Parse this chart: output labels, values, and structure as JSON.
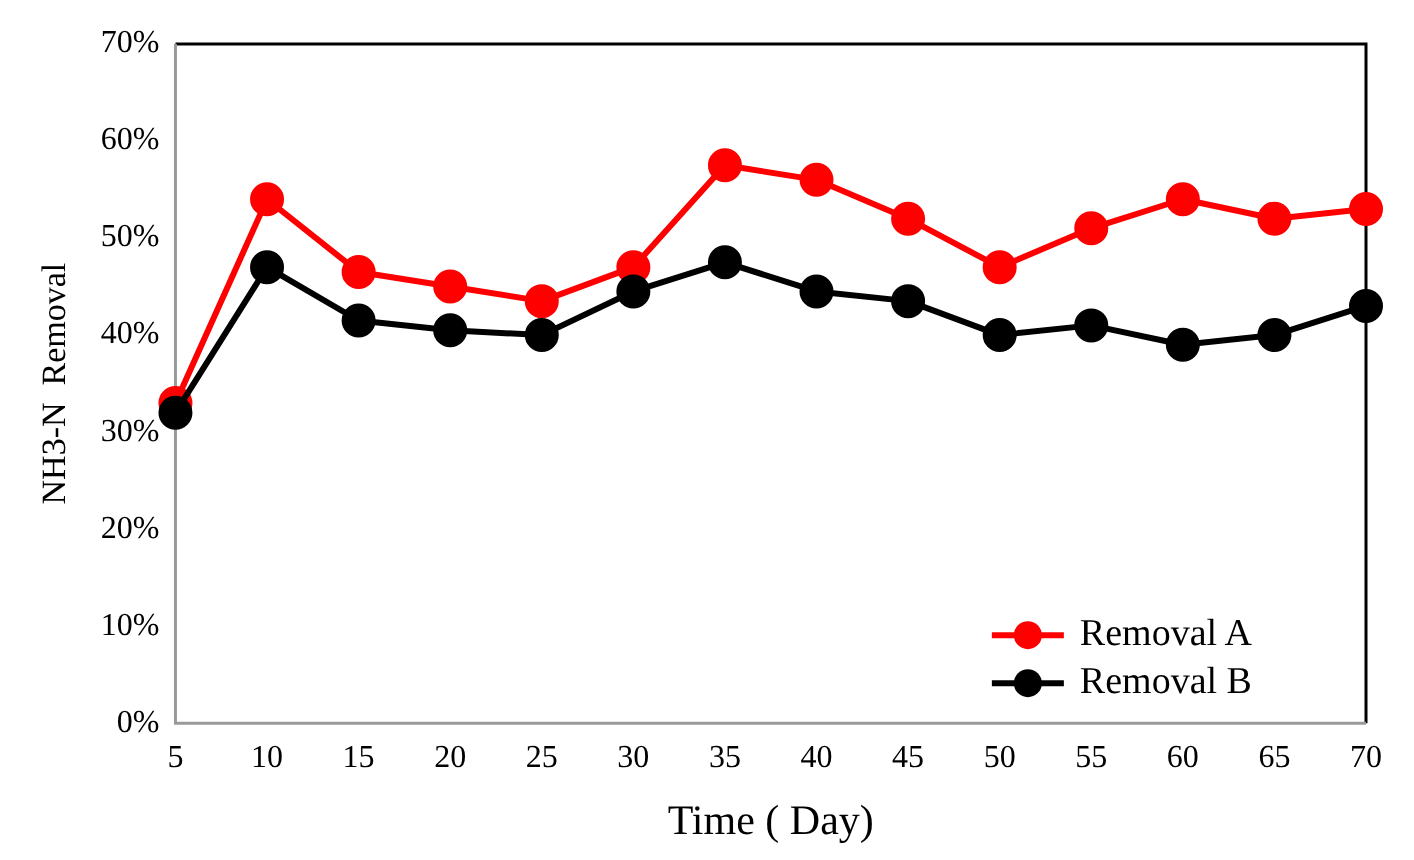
{
  "chart_data": {
    "type": "line",
    "xlabel": "Time ( Day)",
    "ylabel": "NH3-N  Removal",
    "categories": [
      "5",
      "10",
      "15",
      "20",
      "25",
      "30",
      "35",
      "40",
      "45",
      "50",
      "55",
      "60",
      "65",
      "70"
    ],
    "series": [
      {
        "name": "Removal A",
        "color": "#ff0000",
        "values": [
          33,
          54,
          46.5,
          45,
          43.5,
          47,
          57.5,
          56,
          52,
          47,
          51,
          54,
          52,
          53
        ]
      },
      {
        "name": "Removal B",
        "color": "#000000",
        "values": [
          32,
          47,
          41.5,
          40.5,
          40,
          44.5,
          47.5,
          44.5,
          43.5,
          40,
          41,
          39,
          40,
          43
        ]
      }
    ],
    "ylim": [
      0,
      70
    ],
    "yticks": [
      {
        "value": 0,
        "label": "0%"
      },
      {
        "value": 10,
        "label": "10%"
      },
      {
        "value": 20,
        "label": "20%"
      },
      {
        "value": 30,
        "label": "30%"
      },
      {
        "value": 40,
        "label": "40%"
      },
      {
        "value": 50,
        "label": "50%"
      },
      {
        "value": 60,
        "label": "60%"
      },
      {
        "value": 70,
        "label": "70%"
      }
    ],
    "grid": false,
    "legend": "bottom right",
    "marker": "circle",
    "line_style": "solid"
  }
}
